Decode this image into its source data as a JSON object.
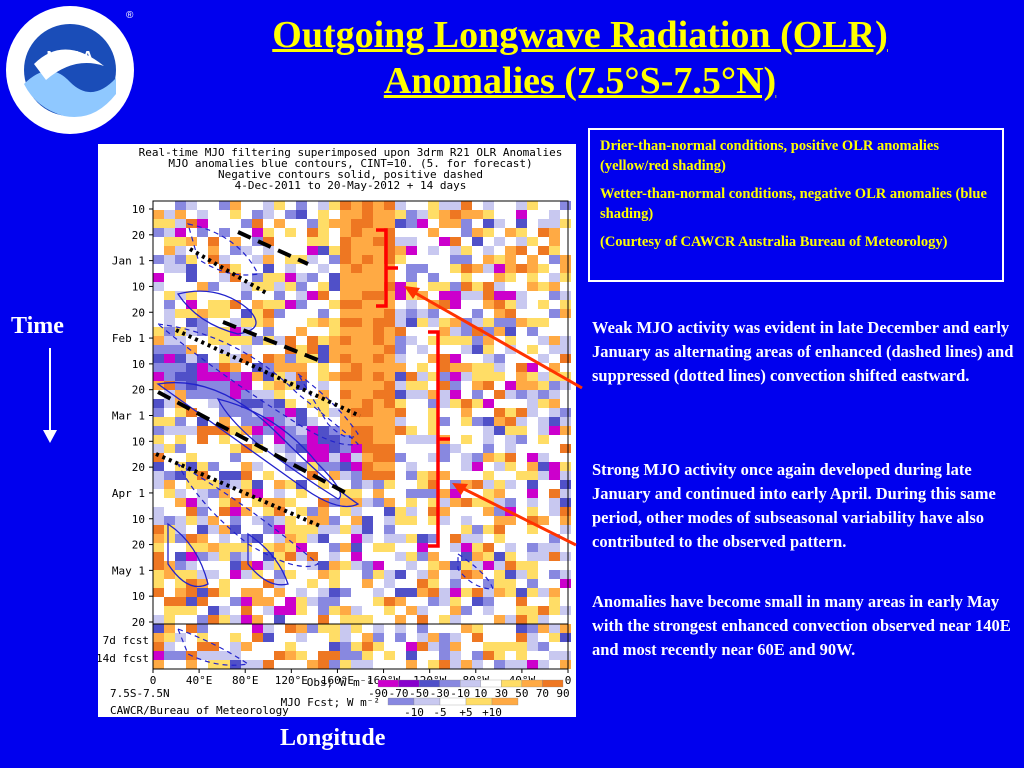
{
  "slide": {
    "title_line1": "Outgoing Longwave Radiation (OLR)",
    "title_line2": "Anomalies (7.5°S-7.5°N)",
    "axis_time": "Time",
    "axis_longitude": "Longitude"
  },
  "logo": {
    "text": "NOAA",
    "ring_text": "NATIONAL OCEANIC AND ATMOSPHERIC ADMINISTRATION · U.S. DEPARTMENT OF COMMERCE",
    "registered": "®"
  },
  "infobox": {
    "drier": "Drier-than-normal conditions, positive OLR anomalies (yellow/red shading)",
    "wetter": "Wetter-than-normal conditions, negative OLR anomalies (blue shading)",
    "courtesy": "(Courtesy of CAWCR Australia Bureau of Meteorology)"
  },
  "notes": {
    "weak": "Weak MJO activity was evident in late December and early January as alternating areas of enhanced (dashed lines) and suppressed (dotted lines) convection shifted eastward.",
    "strong": "Strong MJO activity once again developed during late January and continued into early April. During this same period, other modes of subseasonal variability have also contributed to the observed pattern.",
    "small": "Anomalies have become small in many areas in early May with the strongest enhanced convection observed near 140E and most recently near 60E and 90W."
  },
  "colors": {
    "background": "#0000ee",
    "title": "#ffff00",
    "arrow": "#ff3300",
    "bracket": "#ff0000",
    "positive_anomaly": [
      "#ffdd66",
      "#ffaa44",
      "#ee7722"
    ],
    "negative_anomaly": [
      "#c8c8f0",
      "#8888e0",
      "#5050c8",
      "#8800cc",
      "#cc00cc"
    ]
  },
  "chart_data": {
    "type": "heatmap",
    "title_lines": [
      "Real-time MJO filtering superimposed upon 3drm R21 OLR Anomalies",
      "MJO anomalies blue contours, CINT=10. (5. for forecast)",
      "Negative contours solid, positive dashed",
      "4-Dec-2011 to 20-May-2012 + 14 days"
    ],
    "y_ticks": [
      "10",
      "20",
      "Jan 1",
      "10",
      "20",
      "Feb 1",
      "10",
      "20",
      "Mar 1",
      "10",
      "20",
      "Apr 1",
      "10",
      "20",
      "May 1",
      "10",
      "20"
    ],
    "forecast_labels": [
      "7d fcst",
      "14d fcst"
    ],
    "x_ticks": [
      "0",
      "40°E",
      "80°E",
      "120°E",
      "160°E",
      "160°W",
      "120°W",
      "80°W",
      "40°W",
      "0"
    ],
    "region_label": "7.5S-7.5N",
    "credit": "CAWCR/Bureau of Meteorology",
    "obs_legend_label": "Obs; W m⁻²",
    "obs_legend_values": [
      "-90",
      "-70",
      "-50",
      "-30",
      "-10",
      "10",
      "30",
      "50",
      "70",
      "90"
    ],
    "fcst_legend_label": "MJO Fcst; W m⁻²",
    "fcst_legend_values": [
      "-10",
      "-5",
      "+5",
      "+10"
    ]
  }
}
